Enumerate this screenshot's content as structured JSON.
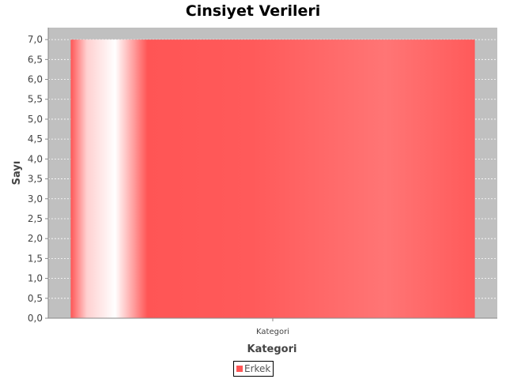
{
  "chart_data": {
    "type": "bar",
    "title": "Cinsiyet Verileri",
    "xlabel": "Kategori",
    "ylabel": "Sayı",
    "categories": [
      "Kategori"
    ],
    "series": [
      {
        "name": "Erkek",
        "values": [
          7.0
        ],
        "color": "#ff5555"
      }
    ],
    "ylim": [
      0,
      7.3
    ],
    "yticks": [
      "0,0",
      "0,5",
      "1,0",
      "1,5",
      "2,0",
      "2,5",
      "3,0",
      "3,5",
      "4,0",
      "4,5",
      "5,0",
      "5,5",
      "6,0",
      "6,5",
      "7,0"
    ],
    "grid": true,
    "legend_position": "bottom",
    "plot_background": "#c0c0c0",
    "gridline_color": "#ffffff"
  }
}
